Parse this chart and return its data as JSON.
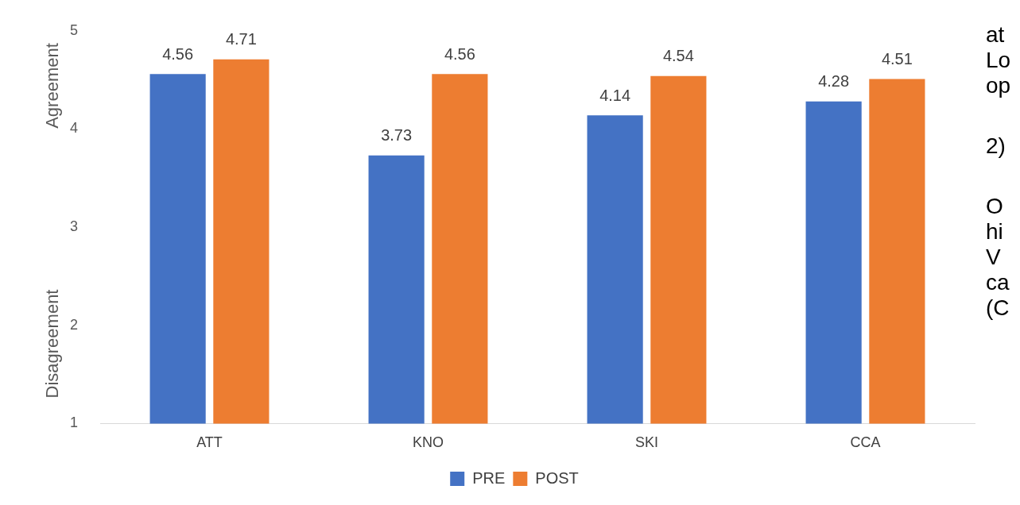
{
  "chart_data": {
    "type": "bar",
    "ylabel": "Agreement",
    "categories": [
      "ATT",
      "KNO",
      "SKI",
      "CCA"
    ],
    "series": [
      {
        "name": "PRE",
        "color": "#4472c4",
        "values": [
          4.56,
          3.73,
          4.14,
          4.28
        ]
      },
      {
        "name": "POST",
        "color": "#ed7d31",
        "values": [
          4.71,
          4.56,
          4.54,
          4.51
        ]
      }
    ],
    "ylim": [
      1,
      5
    ],
    "yticks": [
      1,
      2,
      3,
      4,
      5
    ],
    "grid": false,
    "legend": "bottom",
    "data_labels": true,
    "annotations": [
      "Disagreement",
      "at",
      "Lo",
      "op",
      "2)",
      "O",
      "hi",
      "V",
      "ca",
      "(C"
    ]
  }
}
